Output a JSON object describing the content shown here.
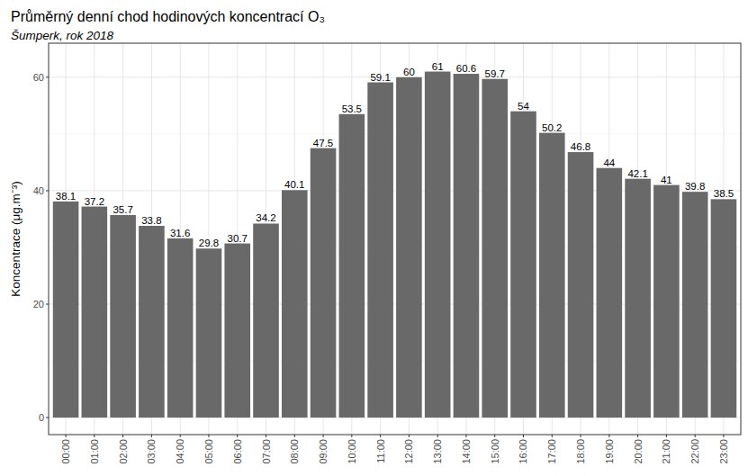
{
  "chart_data": {
    "type": "bar",
    "title": "Průměrný denní chod hodinových koncentrací O₃",
    "subtitle": "Šumperk, rok 2018",
    "y_label": "Koncentrace (μg.m⁻³)",
    "categories": [
      "00:00",
      "01:00",
      "02:00",
      "03:00",
      "04:00",
      "05:00",
      "06:00",
      "07:00",
      "08:00",
      "09:00",
      "10:00",
      "11:00",
      "12:00",
      "13:00",
      "14:00",
      "15:00",
      "16:00",
      "17:00",
      "18:00",
      "19:00",
      "20:00",
      "21:00",
      "22:00",
      "23:00"
    ],
    "values": [
      38.1,
      37.2,
      35.7,
      33.8,
      31.6,
      29.8,
      30.7,
      34.2,
      40.1,
      47.5,
      53.5,
      59.1,
      60,
      61,
      60.6,
      59.7,
      54,
      50.2,
      46.8,
      44,
      42.1,
      41,
      39.8,
      38.5
    ],
    "color": "#696969",
    "ylim": [
      -3,
      66
    ],
    "yticks": [
      0,
      20,
      40,
      60
    ],
    "grid": true,
    "data_labels": true
  }
}
